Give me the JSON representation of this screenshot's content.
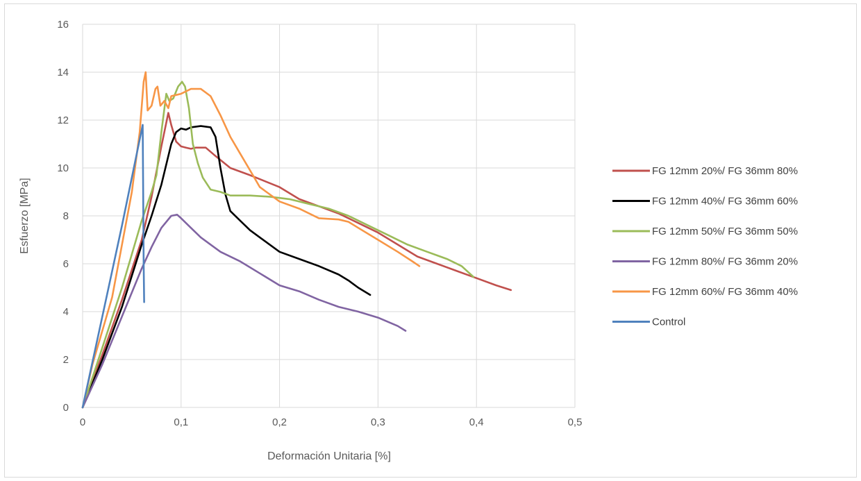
{
  "chart_data": {
    "type": "line",
    "title": "",
    "xlabel": "Deformación Unitaria [%]",
    "ylabel": "Esfuerzo [MPa]",
    "xlim": [
      0,
      0.5
    ],
    "ylim": [
      0,
      16
    ],
    "x_ticks": [
      0,
      0.1,
      0.2,
      0.3,
      0.4,
      0.5
    ],
    "x_tick_labels": [
      "0",
      "0,1",
      "0,2",
      "0,3",
      "0,4",
      "0,5"
    ],
    "y_ticks": [
      0,
      2,
      4,
      6,
      8,
      10,
      12,
      14,
      16
    ],
    "y_tick_labels": [
      "0",
      "2",
      "4",
      "6",
      "8",
      "10",
      "12",
      "14",
      "16"
    ],
    "grid": "major gridlines on both axes",
    "legend_position": "right",
    "series": [
      {
        "name": "FG 12mm 20%/ FG 36mm 80%",
        "color": "#c0504d",
        "points": [
          [
            0,
            0
          ],
          [
            0.02,
            2.2
          ],
          [
            0.04,
            4.5
          ],
          [
            0.06,
            7.0
          ],
          [
            0.07,
            8.8
          ],
          [
            0.08,
            10.9
          ],
          [
            0.087,
            12.3
          ],
          [
            0.09,
            11.8
          ],
          [
            0.095,
            11.1
          ],
          [
            0.1,
            10.9
          ],
          [
            0.105,
            10.85
          ],
          [
            0.11,
            10.8
          ],
          [
            0.115,
            10.85
          ],
          [
            0.125,
            10.85
          ],
          [
            0.135,
            10.5
          ],
          [
            0.15,
            10.0
          ],
          [
            0.17,
            9.7
          ],
          [
            0.2,
            9.2
          ],
          [
            0.22,
            8.7
          ],
          [
            0.24,
            8.4
          ],
          [
            0.26,
            8.1
          ],
          [
            0.28,
            7.7
          ],
          [
            0.3,
            7.3
          ],
          [
            0.32,
            6.8
          ],
          [
            0.34,
            6.3
          ],
          [
            0.36,
            6.0
          ],
          [
            0.38,
            5.7
          ],
          [
            0.4,
            5.4
          ],
          [
            0.42,
            5.1
          ],
          [
            0.435,
            4.9
          ]
        ]
      },
      {
        "name": "FG 12mm 40%/ FG 36mm 60%",
        "color": "#000000",
        "points": [
          [
            0,
            0
          ],
          [
            0.02,
            2.0
          ],
          [
            0.04,
            4.2
          ],
          [
            0.06,
            6.8
          ],
          [
            0.07,
            8.0
          ],
          [
            0.08,
            9.3
          ],
          [
            0.09,
            11.0
          ],
          [
            0.095,
            11.5
          ],
          [
            0.1,
            11.65
          ],
          [
            0.105,
            11.6
          ],
          [
            0.11,
            11.7
          ],
          [
            0.12,
            11.75
          ],
          [
            0.13,
            11.7
          ],
          [
            0.135,
            11.3
          ],
          [
            0.14,
            10.0
          ],
          [
            0.145,
            8.9
          ],
          [
            0.15,
            8.2
          ],
          [
            0.16,
            7.8
          ],
          [
            0.17,
            7.4
          ],
          [
            0.18,
            7.1
          ],
          [
            0.19,
            6.8
          ],
          [
            0.2,
            6.5
          ],
          [
            0.22,
            6.2
          ],
          [
            0.24,
            5.9
          ],
          [
            0.26,
            5.55
          ],
          [
            0.27,
            5.3
          ],
          [
            0.28,
            5.0
          ],
          [
            0.292,
            4.7
          ]
        ]
      },
      {
        "name": "FG 12mm 50%/ FG 36mm 50%",
        "color": "#9bbb59",
        "points": [
          [
            0,
            0
          ],
          [
            0.02,
            2.5
          ],
          [
            0.04,
            5.0
          ],
          [
            0.06,
            7.8
          ],
          [
            0.07,
            9.0
          ],
          [
            0.075,
            9.7
          ],
          [
            0.08,
            11.5
          ],
          [
            0.085,
            13.1
          ],
          [
            0.088,
            12.8
          ],
          [
            0.092,
            12.9
          ],
          [
            0.097,
            13.4
          ],
          [
            0.101,
            13.6
          ],
          [
            0.104,
            13.4
          ],
          [
            0.108,
            12.5
          ],
          [
            0.112,
            11.0
          ],
          [
            0.117,
            10.2
          ],
          [
            0.122,
            9.6
          ],
          [
            0.13,
            9.1
          ],
          [
            0.14,
            9.0
          ],
          [
            0.15,
            8.85
          ],
          [
            0.17,
            8.85
          ],
          [
            0.19,
            8.8
          ],
          [
            0.21,
            8.7
          ],
          [
            0.23,
            8.5
          ],
          [
            0.25,
            8.3
          ],
          [
            0.27,
            8.0
          ],
          [
            0.29,
            7.6
          ],
          [
            0.31,
            7.2
          ],
          [
            0.33,
            6.8
          ],
          [
            0.35,
            6.5
          ],
          [
            0.37,
            6.2
          ],
          [
            0.385,
            5.9
          ],
          [
            0.397,
            5.45
          ]
        ]
      },
      {
        "name": "FG 12mm 80%/ FG 36mm 20%",
        "color": "#8064a2",
        "points": [
          [
            0,
            0
          ],
          [
            0.02,
            1.8
          ],
          [
            0.04,
            3.8
          ],
          [
            0.06,
            5.8
          ],
          [
            0.07,
            6.7
          ],
          [
            0.08,
            7.5
          ],
          [
            0.09,
            8.0
          ],
          [
            0.096,
            8.05
          ],
          [
            0.1,
            7.9
          ],
          [
            0.11,
            7.5
          ],
          [
            0.12,
            7.1
          ],
          [
            0.13,
            6.8
          ],
          [
            0.14,
            6.5
          ],
          [
            0.16,
            6.1
          ],
          [
            0.18,
            5.6
          ],
          [
            0.2,
            5.1
          ],
          [
            0.22,
            4.85
          ],
          [
            0.24,
            4.5
          ],
          [
            0.26,
            4.2
          ],
          [
            0.28,
            4.0
          ],
          [
            0.3,
            3.75
          ],
          [
            0.32,
            3.4
          ],
          [
            0.328,
            3.2
          ]
        ]
      },
      {
        "name": "FG 12mm 60%/ FG 36mm 40%",
        "color": "#f79646",
        "points": [
          [
            0,
            0
          ],
          [
            0.01,
            1.8
          ],
          [
            0.03,
            4.6
          ],
          [
            0.05,
            9.0
          ],
          [
            0.058,
            11.5
          ],
          [
            0.062,
            13.6
          ],
          [
            0.064,
            14.0
          ],
          [
            0.066,
            12.4
          ],
          [
            0.07,
            12.6
          ],
          [
            0.074,
            13.3
          ],
          [
            0.076,
            13.4
          ],
          [
            0.079,
            12.6
          ],
          [
            0.083,
            12.8
          ],
          [
            0.087,
            12.5
          ],
          [
            0.09,
            13.0
          ],
          [
            0.1,
            13.1
          ],
          [
            0.11,
            13.3
          ],
          [
            0.12,
            13.3
          ],
          [
            0.13,
            13.0
          ],
          [
            0.14,
            12.2
          ],
          [
            0.15,
            11.3
          ],
          [
            0.16,
            10.6
          ],
          [
            0.17,
            9.9
          ],
          [
            0.18,
            9.2
          ],
          [
            0.2,
            8.6
          ],
          [
            0.22,
            8.3
          ],
          [
            0.24,
            7.9
          ],
          [
            0.26,
            7.85
          ],
          [
            0.27,
            7.75
          ],
          [
            0.28,
            7.5
          ],
          [
            0.3,
            7.0
          ],
          [
            0.32,
            6.5
          ],
          [
            0.335,
            6.1
          ],
          [
            0.342,
            5.9
          ]
        ]
      },
      {
        "name": "Control",
        "color": "#4f81bd",
        "points": [
          [
            0,
            0
          ],
          [
            0.02,
            3.8
          ],
          [
            0.04,
            7.6
          ],
          [
            0.05,
            9.6
          ],
          [
            0.055,
            10.6
          ],
          [
            0.06,
            11.6
          ],
          [
            0.061,
            11.8
          ],
          [
            0.0615,
            9.0
          ],
          [
            0.062,
            6.0
          ],
          [
            0.0625,
            4.4
          ]
        ]
      }
    ]
  }
}
